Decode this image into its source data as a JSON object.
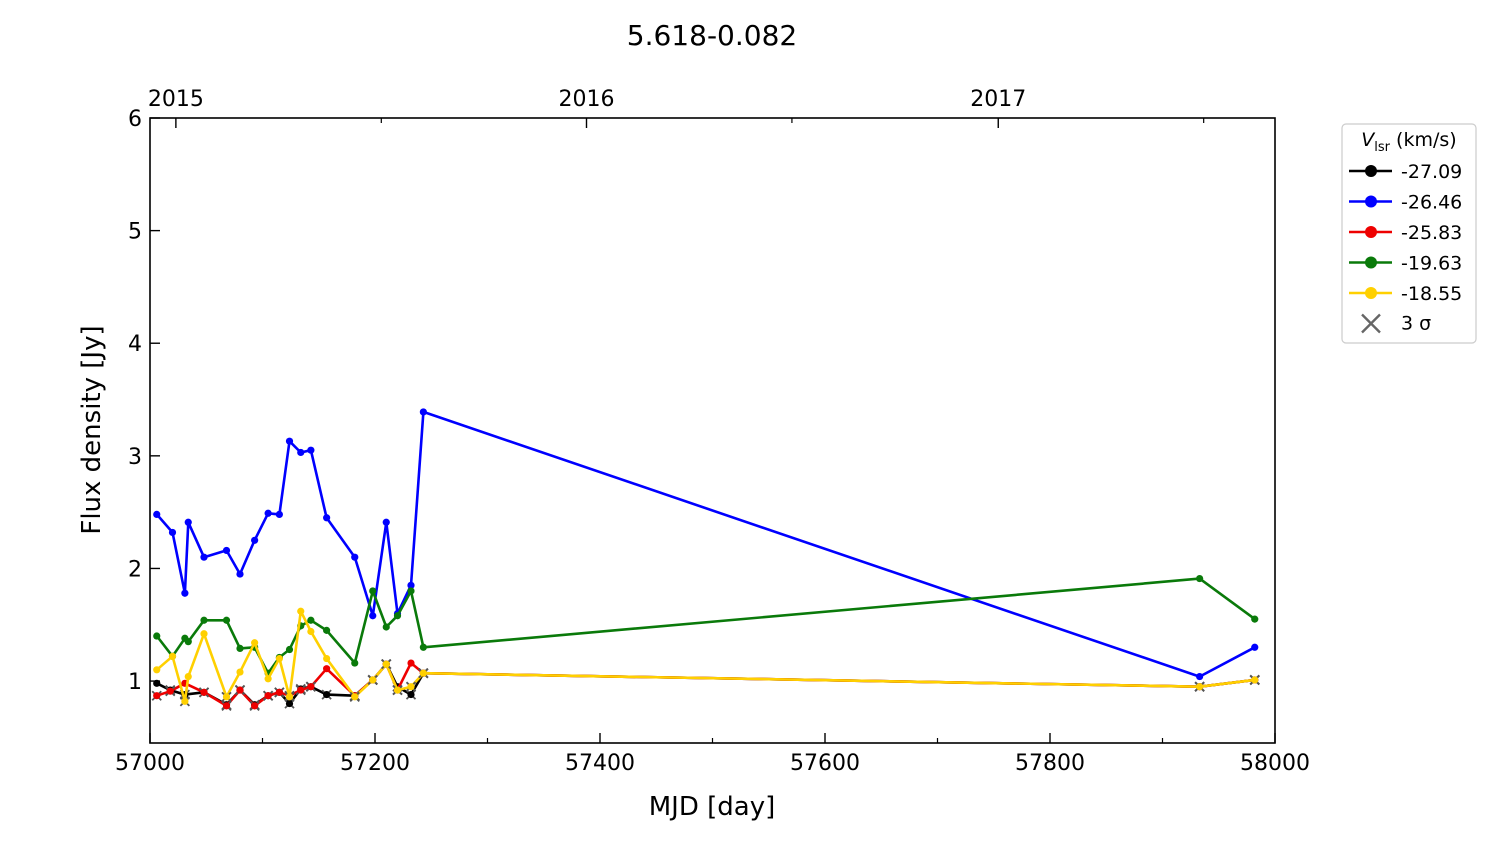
{
  "chart_data": {
    "type": "line",
    "title": "5.618-0.082",
    "xlabel": "MJD [day]",
    "ylabel": "Flux density [Jy]",
    "xlim": [
      57000,
      58000
    ],
    "ylim": [
      0.45,
      6
    ],
    "x_ticks": [
      "57000",
      "57200",
      "57400",
      "57600",
      "57800",
      "58000"
    ],
    "y_ticks": [
      "1",
      "2",
      "3",
      "4",
      "5",
      "6"
    ],
    "top_axis": {
      "years": [
        {
          "label": "2015",
          "mjd": 57023
        },
        {
          "label": "2016",
          "mjd": 57388
        },
        {
          "label": "2017",
          "mjd": 57754
        }
      ]
    },
    "grid": false,
    "legend": {
      "placement": "outside-right-top",
      "title_main": "V",
      "title_sub": "lsr",
      "title_rest": " (km/s)",
      "sigma_label": "3 σ"
    },
    "series": [
      {
        "name": "-27.09",
        "color": "#000000",
        "x": [
          57006,
          57018,
          57031,
          57048,
          57068,
          57080,
          57093,
          57105,
          57115,
          57124,
          57134,
          57143,
          57157,
          57182,
          57198,
          57210,
          57220,
          57232,
          57243,
          57933,
          57982
        ],
        "y": [
          0.98,
          0.92,
          0.88,
          0.9,
          0.79,
          0.92,
          0.79,
          0.87,
          0.9,
          0.8,
          0.93,
          0.95,
          0.88,
          0.87,
          1.01,
          1.15,
          0.95,
          0.88,
          1.07,
          0.95,
          1.01
        ],
        "upper_limit": [
          false,
          true,
          true,
          true,
          true,
          true,
          true,
          true,
          true,
          true,
          true,
          true,
          true,
          true,
          true,
          true,
          true,
          true,
          true,
          true,
          true
        ]
      },
      {
        "name": "-26.46",
        "color": "#0000ff",
        "x": [
          57006,
          57020,
          57031,
          57034,
          57048,
          57068,
          57080,
          57093,
          57105,
          57115,
          57124,
          57134,
          57143,
          57157,
          57182,
          57198,
          57210,
          57220,
          57232,
          57243,
          57933,
          57982
        ],
        "y": [
          2.48,
          2.32,
          1.78,
          2.41,
          2.1,
          2.16,
          1.95,
          2.25,
          2.49,
          2.48,
          3.13,
          3.03,
          3.05,
          2.45,
          2.1,
          1.58,
          2.41,
          1.6,
          1.85,
          3.39,
          1.04,
          1.3
        ],
        "upper_limit": []
      },
      {
        "name": "-25.83",
        "color": "#ee0000",
        "x": [
          57006,
          57018,
          57031,
          57048,
          57068,
          57080,
          57093,
          57105,
          57115,
          57124,
          57134,
          57143,
          57157,
          57182,
          57198,
          57210,
          57220,
          57232,
          57243,
          57933,
          57982
        ],
        "y": [
          0.87,
          0.91,
          0.98,
          0.9,
          0.78,
          0.92,
          0.78,
          0.87,
          0.9,
          0.87,
          0.92,
          0.95,
          1.11,
          0.87,
          1.01,
          1.15,
          0.92,
          1.16,
          1.07,
          0.95,
          1.01
        ],
        "upper_limit": [
          true,
          true,
          false,
          true,
          true,
          true,
          true,
          true,
          true,
          true,
          true,
          true,
          false,
          true,
          true,
          true,
          true,
          false,
          true,
          true,
          true
        ]
      },
      {
        "name": "-19.63",
        "color": "#0a7a0a",
        "x": [
          57006,
          57020,
          57031,
          57034,
          57048,
          57068,
          57080,
          57093,
          57105,
          57115,
          57124,
          57134,
          57143,
          57157,
          57182,
          57198,
          57210,
          57220,
          57232,
          57243,
          57933,
          57982
        ],
        "y": [
          1.4,
          1.22,
          1.38,
          1.35,
          1.54,
          1.54,
          1.29,
          1.3,
          1.07,
          1.21,
          1.28,
          1.49,
          1.54,
          1.45,
          1.16,
          1.8,
          1.48,
          1.58,
          1.8,
          1.3,
          1.91,
          1.55
        ],
        "upper_limit": []
      },
      {
        "name": "-18.55",
        "color": "#ffd000",
        "x": [
          57006,
          57020,
          57031,
          57034,
          57048,
          57068,
          57080,
          57093,
          57105,
          57115,
          57124,
          57134,
          57143,
          57157,
          57182,
          57198,
          57210,
          57220,
          57232,
          57243,
          57933,
          57982
        ],
        "y": [
          1.1,
          1.22,
          0.82,
          1.04,
          1.42,
          0.86,
          1.08,
          1.34,
          1.02,
          1.2,
          0.86,
          1.62,
          1.44,
          1.2,
          0.86,
          1.01,
          1.15,
          0.92,
          0.95,
          1.07,
          0.95,
          1.01
        ],
        "upper_limit": [
          false,
          false,
          true,
          false,
          false,
          true,
          false,
          false,
          false,
          false,
          true,
          false,
          false,
          false,
          true,
          true,
          true,
          true,
          true,
          true,
          true,
          true
        ]
      }
    ]
  }
}
